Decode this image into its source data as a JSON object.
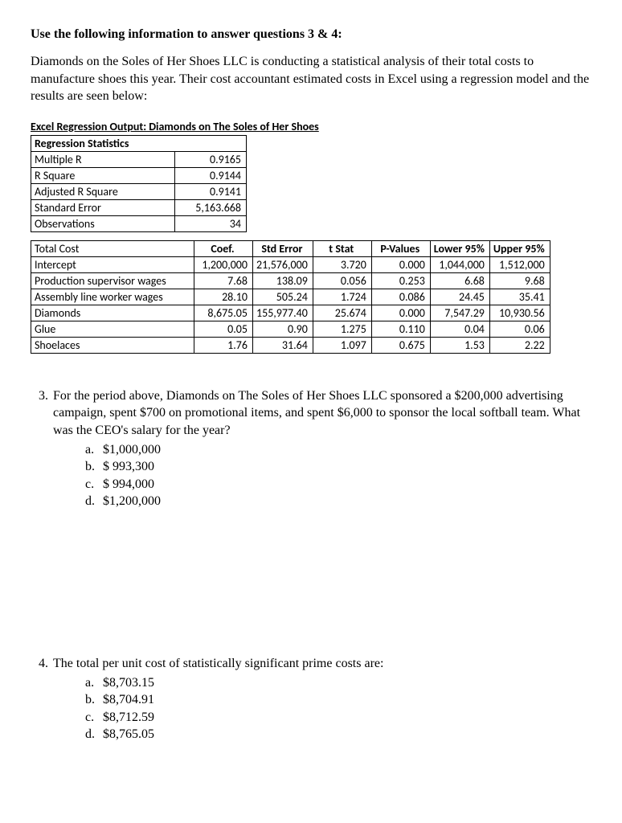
{
  "heading": "Use the following information to answer questions 3 & 4:",
  "intro": "Diamonds on the Soles of Her Shoes LLC is conducting a statistical analysis of their total costs to manufacture shoes this year. Their cost accountant estimated costs in Excel using a regression model and the results are seen below:",
  "regression": {
    "title": "Excel Regression Output: Diamonds on The Soles of Her Shoes",
    "stats_header": "Regression Statistics",
    "stats": [
      {
        "label": "Multiple R",
        "value": "0.9165"
      },
      {
        "label": "R Square",
        "value": "0.9144"
      },
      {
        "label": "Adjusted R Square",
        "value": "0.9141"
      },
      {
        "label": "Standard Error",
        "value": "5,163.668"
      },
      {
        "label": "Observations",
        "value": "34"
      }
    ],
    "coef_headers": [
      "Total Cost",
      "Coef.",
      "Std Error",
      "t Stat",
      "P-Values",
      "Lower 95%",
      "Upper 95%"
    ],
    "coef_rows": [
      [
        "Intercept",
        "1,200,000",
        "21,576,000",
        "3.720",
        "0.000",
        "1,044,000",
        "1,512,000"
      ],
      [
        "Production supervisor wages",
        "7.68",
        "138.09",
        "0.056",
        "0.253",
        "6.68",
        "9.68"
      ],
      [
        "Assembly line worker wages",
        "28.10",
        "505.24",
        "1.724",
        "0.086",
        "24.45",
        "35.41"
      ],
      [
        "Diamonds",
        "8,675.05",
        "155,977.40",
        "25.674",
        "0.000",
        "7,547.29",
        "10,930.56"
      ],
      [
        "Glue",
        "0.05",
        "0.90",
        "1.275",
        "0.110",
        "0.04",
        "0.06"
      ],
      [
        "Shoelaces",
        "1.76",
        "31.64",
        "1.097",
        "0.675",
        "1.53",
        "2.22"
      ]
    ]
  },
  "q3": {
    "number": "3.",
    "text": "For the period above, Diamonds on The Soles of Her Shoes LLC sponsored a $200,000 advertising campaign, spent $700 on promotional items, and spent $6,000 to sponsor the local softball team. What was the CEO's salary for the year?",
    "options": [
      {
        "letter": "a.",
        "text": "$1,000,000"
      },
      {
        "letter": "b.",
        "text": "$   993,300"
      },
      {
        "letter": "c.",
        "text": "$   994,000"
      },
      {
        "letter": "d.",
        "text": "$1,200,000"
      }
    ]
  },
  "q4": {
    "number": "4.",
    "text": "The total per unit cost of statistically significant prime costs are:",
    "options": [
      {
        "letter": "a.",
        "text": "$8,703.15"
      },
      {
        "letter": "b.",
        "text": "$8,704.91"
      },
      {
        "letter": "c.",
        "text": "$8,712.59"
      },
      {
        "letter": "d.",
        "text": "$8,765.05"
      }
    ]
  }
}
